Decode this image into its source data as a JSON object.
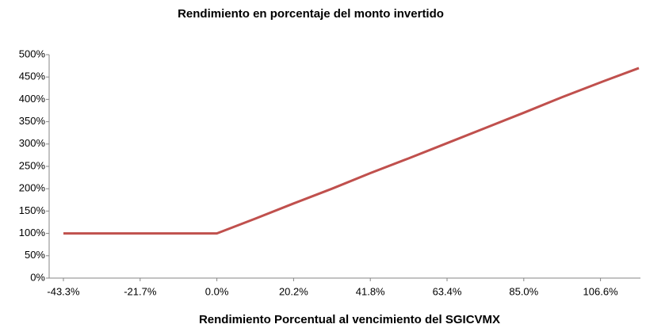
{
  "chart_data": {
    "type": "line",
    "title": "Rendimiento en porcentaje del monto invertido",
    "x_label": "Rendimiento Porcentual al vencimiento del SGICVMX",
    "categories": [
      "-43.3%",
      null,
      "-21.7%",
      null,
      "0.0%",
      null,
      "20.2%",
      null,
      "41.8%",
      null,
      "63.4%",
      null,
      "85.0%",
      null,
      "106.6%",
      null
    ],
    "series": [
      {
        "name": "Rendimiento",
        "color": "#c0504d",
        "values": [
          100,
          100,
          100,
          100,
          100,
          133,
          167,
          200,
          235,
          268,
          302,
          336,
          370,
          405,
          438,
          470
        ]
      }
    ],
    "ylim": [
      0,
      500
    ],
    "yticks": [
      {
        "value": 0,
        "label": "0%"
      },
      {
        "value": 50,
        "label": "50%"
      },
      {
        "value": 100,
        "label": "100%"
      },
      {
        "value": 150,
        "label": "150%"
      },
      {
        "value": 200,
        "label": "200%"
      },
      {
        "value": 250,
        "label": "250%"
      },
      {
        "value": 300,
        "label": "300%"
      },
      {
        "value": 350,
        "label": "350%"
      },
      {
        "value": 400,
        "label": "400%"
      },
      {
        "value": 450,
        "label": "450%"
      },
      {
        "value": 500,
        "label": "500%"
      }
    ],
    "grid": false
  }
}
